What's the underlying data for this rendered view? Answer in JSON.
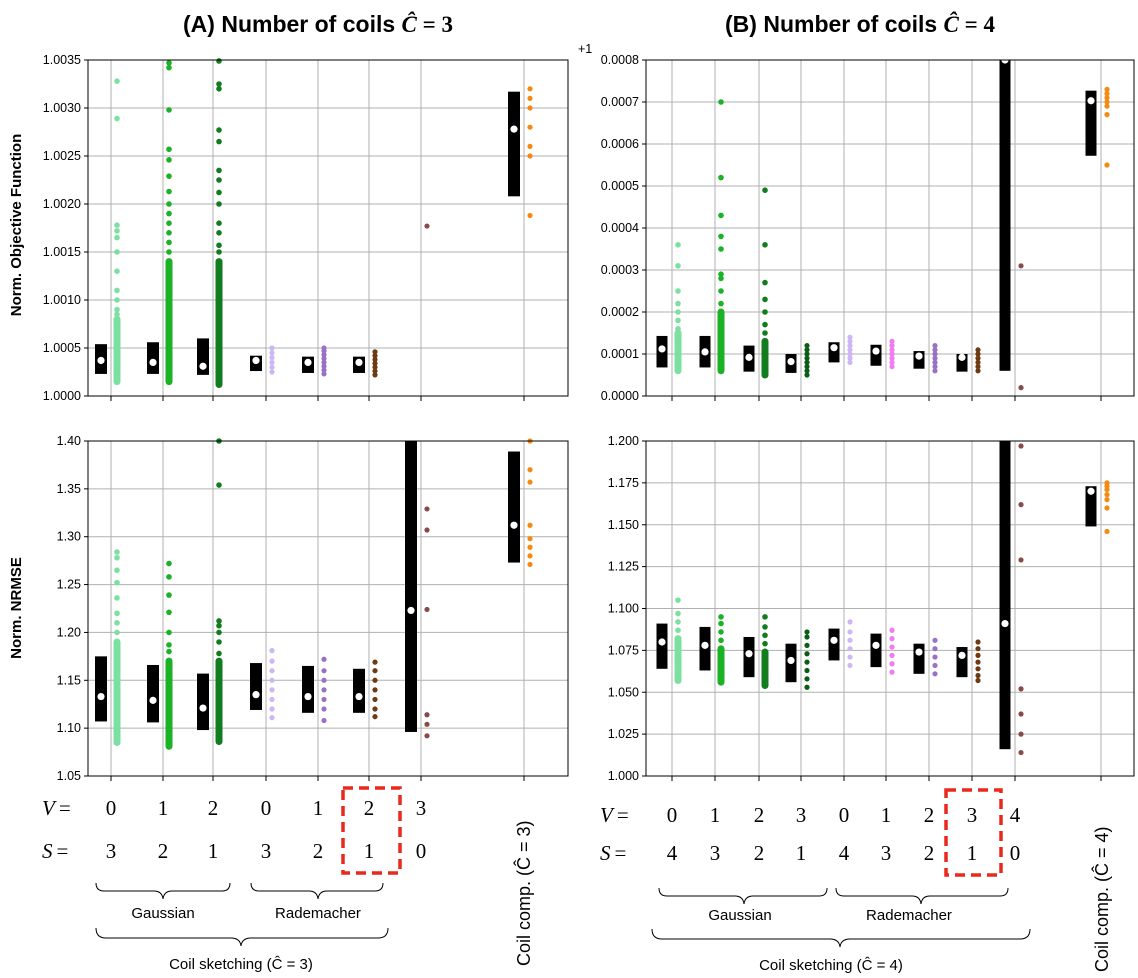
{
  "panels": [
    {
      "title_prefix": "(A) Number of coils ",
      "title_math": "Ĉ",
      "title_suffix": " = 3"
    },
    {
      "title_prefix": "(B) Number of coils ",
      "title_math": "Ĉ",
      "title_suffix": " = 4"
    }
  ],
  "row_labels": {
    "V": "V",
    "S": "S",
    "eq": "="
  },
  "x_rows": [
    {
      "V": [
        "0",
        "1",
        "2",
        "0",
        "1",
        "2",
        "3"
      ],
      "S": [
        "3",
        "2",
        "1",
        "3",
        "2",
        "1",
        "0"
      ]
    },
    {
      "V": [
        "0",
        "1",
        "2",
        "3",
        "0",
        "1",
        "2",
        "3",
        "4"
      ],
      "S": [
        "4",
        "3",
        "2",
        "1",
        "4",
        "3",
        "2",
        "1",
        "0"
      ]
    }
  ],
  "groups": {
    "gaussian": "Gaussian",
    "rademacher": "Rademacher",
    "sketch_A": "Coil sketching (Ĉ = 3)",
    "sketch_B": "Coil sketching (Ĉ = 4)",
    "comp_A": "Coil comp. (Ĉ = 3)",
    "comp_B": "Coil comp. (Ĉ = 4)"
  },
  "colors": {
    "g0": "#7be0a0",
    "g1": "#1bb226",
    "g2": "#127d1e",
    "g3": "#0b5d16",
    "r0": "#cdb6f5",
    "r1": "#f27af2",
    "r2": "#9a72c5",
    "r3": "#6e3a12",
    "zero": "#8b4a4a",
    "comp": "#f58a10",
    "box": "#000000",
    "highlight": "#e8291c"
  },
  "chart_data": [
    {
      "type": "box-strip",
      "panel": "A-top",
      "ylabel": "Norm. Objective Function",
      "ylim": [
        1.0,
        1.0035
      ],
      "offset_label": "",
      "yticks": [
        1.0,
        1.0005,
        1.001,
        1.0015,
        1.002,
        1.0025,
        1.003,
        1.0035
      ],
      "ytick_labels": [
        "1.0000",
        "1.0005",
        "1.0010",
        "1.0015",
        "1.0020",
        "1.0025",
        "1.0030",
        "1.0035"
      ],
      "categories": [
        "V=0,S=3 Gaussian",
        "V=1,S=2 Gaussian",
        "V=2,S=1 Gaussian",
        "V=0,S=3 Rademacher",
        "V=1,S=2 Rademacher",
        "V=2,S=1 Rademacher",
        "V=3,S=0",
        "Coil comp."
      ],
      "boxes": [
        {
          "q1": 1.00023,
          "q3": 1.00054,
          "median": 1.00037
        },
        {
          "q1": 1.00023,
          "q3": 1.00056,
          "median": 1.00035
        },
        {
          "q1": 1.00022,
          "q3": 1.0006,
          "median": 1.00031
        },
        {
          "q1": 1.00026,
          "q3": 1.00042,
          "median": 1.00037
        },
        {
          "q1": 1.00024,
          "q3": 1.00041,
          "median": 1.00035
        },
        {
          "q1": 1.00024,
          "q3": 1.00041,
          "median": 1.00035
        },
        null,
        {
          "q1": 1.00208,
          "q3": 1.00317,
          "median": 1.00278
        }
      ],
      "points": [
        [
          1.00015,
          1.0002,
          1.00025,
          1.0003,
          1.00035,
          1.0004,
          1.00045,
          1.0005,
          1.00055,
          1.0006,
          1.00065,
          1.0007,
          1.00075,
          1.0008,
          1.00085,
          1.0009,
          1.001,
          1.0011,
          1.0013,
          1.0015,
          1.00165,
          1.00172,
          1.00178,
          1.00289,
          1.00328
        ],
        [
          1.00015,
          1.0002,
          1.00025,
          1.0003,
          1.00035,
          1.0004,
          1.0005,
          1.0006,
          1.0007,
          1.0008,
          1.0009,
          1.001,
          1.0011,
          1.0012,
          1.0013,
          1.0014,
          1.0015,
          1.0016,
          1.0017,
          1.0018,
          1.0019,
          1.002,
          1.00213,
          1.00229,
          1.00246,
          1.00257,
          1.00298,
          1.00342,
          1.00347
        ],
        [
          1.00012,
          1.00018,
          1.00025,
          1.0003,
          1.00035,
          1.0004,
          1.0005,
          1.0006,
          1.0007,
          1.0008,
          1.0009,
          1.001,
          1.0011,
          1.0012,
          1.0013,
          1.0014,
          1.0015,
          1.00157,
          1.0017,
          1.0018,
          1.002,
          1.00212,
          1.00225,
          1.00235,
          1.00265,
          1.00277,
          1.0032,
          1.00325,
          1.00349
        ],
        [
          1.00025,
          1.0003,
          1.00035,
          1.0004,
          1.00045,
          1.0005
        ],
        [
          1.00023,
          1.00027,
          1.00031,
          1.00035,
          1.00039,
          1.00043,
          1.00047,
          1.0005
        ],
        [
          1.00022,
          1.00026,
          1.0003,
          1.00034,
          1.00038,
          1.00042,
          1.00046
        ],
        [
          1.00177
        ],
        [
          1.00188,
          1.0025,
          1.0026,
          1.0028,
          1.003,
          1.0031,
          1.0032
        ]
      ]
    },
    {
      "type": "box-strip",
      "panel": "B-top",
      "ylabel": "",
      "ylim": [
        0.0,
        0.0008
      ],
      "offset_label": "+1",
      "yticks": [
        0.0,
        0.0001,
        0.0002,
        0.0003,
        0.0004,
        0.0005,
        0.0006,
        0.0007,
        0.0008
      ],
      "ytick_labels": [
        "0.0000",
        "0.0001",
        "0.0002",
        "0.0003",
        "0.0004",
        "0.0005",
        "0.0006",
        "0.0007",
        "0.0008"
      ],
      "categories": [
        "V=0,S=4 Gaussian",
        "V=1,S=3 Gaussian",
        "V=2,S=2 Gaussian",
        "V=3,S=1 Gaussian",
        "V=0,S=4 Rademacher",
        "V=1,S=3 Rademacher",
        "V=2,S=2 Rademacher",
        "V=3,S=1 Rademacher",
        "V=4,S=0",
        "Coil comp."
      ],
      "boxes": [
        {
          "q1": 6.8e-05,
          "q3": 0.000143,
          "median": 0.000112
        },
        {
          "q1": 6.8e-05,
          "q3": 0.000143,
          "median": 0.000105
        },
        {
          "q1": 5.8e-05,
          "q3": 0.00012,
          "median": 9.2e-05
        },
        {
          "q1": 5.5e-05,
          "q3": 0.0001,
          "median": 8.2e-05
        },
        {
          "q1": 8e-05,
          "q3": 0.000128,
          "median": 0.000115
        },
        {
          "q1": 7.2e-05,
          "q3": 0.000122,
          "median": 0.000107
        },
        {
          "q1": 6.5e-05,
          "q3": 0.000107,
          "median": 9.5e-05
        },
        {
          "q1": 5.8e-05,
          "q3": 0.0001,
          "median": 9.2e-05
        },
        {
          "q1": 6e-05,
          "q3": 0.0008,
          "median": 0.0008
        },
        {
          "q1": 0.000572,
          "q3": 0.000727,
          "median": 0.000703
        }
      ],
      "points": [
        [
          6e-05,
          7e-05,
          8e-05,
          9e-05,
          0.0001,
          0.00011,
          0.00012,
          0.00013,
          0.00014,
          0.00015,
          0.00016,
          0.00018,
          0.0002,
          0.00022,
          0.00025,
          0.00031,
          0.00036
        ],
        [
          6e-05,
          7e-05,
          8e-05,
          9e-05,
          0.0001,
          0.00011,
          0.00012,
          0.00013,
          0.00014,
          0.00015,
          0.00017,
          0.0002,
          0.00022,
          0.00025,
          0.00028,
          0.00029,
          0.00035,
          0.00038,
          0.00043,
          0.00052,
          0.0007
        ],
        [
          5e-05,
          6e-05,
          7e-05,
          8e-05,
          9e-05,
          0.0001,
          0.00011,
          0.00012,
          0.00013,
          0.00015,
          0.00017,
          0.0002,
          0.00023,
          0.00027,
          0.00036,
          0.00049
        ],
        [
          5e-05,
          6e-05,
          7e-05,
          8e-05,
          9e-05,
          0.0001,
          0.00011,
          0.00012
        ],
        [
          8e-05,
          9e-05,
          0.0001,
          0.00011,
          0.00012,
          0.00013,
          0.00014
        ],
        [
          7e-05,
          8e-05,
          9e-05,
          0.0001,
          0.00011,
          0.00012,
          0.00013
        ],
        [
          6e-05,
          7e-05,
          8e-05,
          9e-05,
          0.0001,
          0.00011,
          0.00012
        ],
        [
          6e-05,
          7e-05,
          8e-05,
          9e-05,
          0.0001,
          0.00011
        ],
        [
          2e-05,
          0.00031
        ],
        [
          0.00055,
          0.00067,
          0.00069,
          0.0007,
          0.00071,
          0.00072,
          0.00073
        ]
      ]
    },
    {
      "type": "box-strip",
      "panel": "A-bottom",
      "ylabel": "Norm. NRMSE",
      "ylim": [
        1.05,
        1.4
      ],
      "offset_label": "",
      "yticks": [
        1.05,
        1.1,
        1.15,
        1.2,
        1.25,
        1.3,
        1.35,
        1.4
      ],
      "ytick_labels": [
        "1.05",
        "1.10",
        "1.15",
        "1.20",
        "1.25",
        "1.30",
        "1.35",
        "1.40"
      ],
      "categories": [
        "V=0,S=3 Gaussian",
        "V=1,S=2 Gaussian",
        "V=2,S=1 Gaussian",
        "V=0,S=3 Rademacher",
        "V=1,S=2 Rademacher",
        "V=2,S=1 Rademacher",
        "V=3,S=0",
        "Coil comp."
      ],
      "boxes": [
        {
          "q1": 1.107,
          "q3": 1.175,
          "median": 1.133
        },
        {
          "q1": 1.106,
          "q3": 1.166,
          "median": 1.129
        },
        {
          "q1": 1.098,
          "q3": 1.157,
          "median": 1.121
        },
        {
          "q1": 1.119,
          "q3": 1.168,
          "median": 1.135
        },
        {
          "q1": 1.116,
          "q3": 1.165,
          "median": 1.133
        },
        {
          "q1": 1.116,
          "q3": 1.162,
          "median": 1.133
        },
        {
          "q1": 1.096,
          "q3": 1.4,
          "median": 1.223
        },
        {
          "q1": 1.273,
          "q3": 1.389,
          "median": 1.312
        }
      ],
      "points": [
        [
          1.085,
          1.09,
          1.1,
          1.11,
          1.12,
          1.13,
          1.14,
          1.15,
          1.16,
          1.17,
          1.18,
          1.19,
          1.2,
          1.21,
          1.22,
          1.236,
          1.252,
          1.265,
          1.278,
          1.284
        ],
        [
          1.081,
          1.09,
          1.1,
          1.11,
          1.12,
          1.13,
          1.14,
          1.15,
          1.16,
          1.17,
          1.18,
          1.187,
          1.2,
          1.221,
          1.239,
          1.258,
          1.272
        ],
        [
          1.086,
          1.09,
          1.1,
          1.11,
          1.12,
          1.13,
          1.14,
          1.15,
          1.16,
          1.17,
          1.178,
          1.19,
          1.2,
          1.207,
          1.212,
          1.354,
          1.4
        ],
        [
          1.111,
          1.12,
          1.13,
          1.14,
          1.15,
          1.16,
          1.17,
          1.181
        ],
        [
          1.108,
          1.12,
          1.13,
          1.14,
          1.15,
          1.16,
          1.172
        ],
        [
          1.112,
          1.12,
          1.13,
          1.14,
          1.15,
          1.16,
          1.169
        ],
        [
          1.092,
          1.104,
          1.114,
          1.224,
          1.307,
          1.329
        ],
        [
          1.271,
          1.28,
          1.289,
          1.298,
          1.312,
          1.357,
          1.37,
          1.4
        ]
      ]
    },
    {
      "type": "box-strip",
      "panel": "B-bottom",
      "ylabel": "",
      "ylim": [
        1.0,
        1.2
      ],
      "offset_label": "",
      "yticks": [
        1.0,
        1.025,
        1.05,
        1.075,
        1.1,
        1.125,
        1.15,
        1.175,
        1.2
      ],
      "ytick_labels": [
        "1.000",
        "1.025",
        "1.050",
        "1.075",
        "1.100",
        "1.125",
        "1.150",
        "1.175",
        "1.200"
      ],
      "categories": [
        "V=0,S=4 Gaussian",
        "V=1,S=3 Gaussian",
        "V=2,S=2 Gaussian",
        "V=3,S=1 Gaussian",
        "V=0,S=4 Rademacher",
        "V=1,S=3 Rademacher",
        "V=2,S=2 Rademacher",
        "V=3,S=1 Rademacher",
        "V=4,S=0",
        "Coil comp."
      ],
      "boxes": [
        {
          "q1": 1.064,
          "q3": 1.091,
          "median": 1.08
        },
        {
          "q1": 1.063,
          "q3": 1.089,
          "median": 1.078
        },
        {
          "q1": 1.059,
          "q3": 1.083,
          "median": 1.073
        },
        {
          "q1": 1.056,
          "q3": 1.079,
          "median": 1.069
        },
        {
          "q1": 1.069,
          "q3": 1.088,
          "median": 1.081
        },
        {
          "q1": 1.065,
          "q3": 1.085,
          "median": 1.078
        },
        {
          "q1": 1.061,
          "q3": 1.079,
          "median": 1.074
        },
        {
          "q1": 1.059,
          "q3": 1.077,
          "median": 1.072
        },
        {
          "q1": 1.016,
          "q3": 1.2,
          "median": 1.091
        },
        {
          "q1": 1.149,
          "q3": 1.173,
          "median": 1.17
        }
      ],
      "points": [
        [
          1.057,
          1.062,
          1.067,
          1.072,
          1.077,
          1.082,
          1.087,
          1.092,
          1.097,
          1.105
        ],
        [
          1.056,
          1.061,
          1.066,
          1.071,
          1.076,
          1.081,
          1.086,
          1.091,
          1.095
        ],
        [
          1.054,
          1.059,
          1.064,
          1.069,
          1.074,
          1.079,
          1.084,
          1.089,
          1.095
        ],
        [
          1.053,
          1.058,
          1.063,
          1.068,
          1.073,
          1.078,
          1.083,
          1.086
        ],
        [
          1.066,
          1.071,
          1.076,
          1.081,
          1.086,
          1.092
        ],
        [
          1.062,
          1.067,
          1.072,
          1.077,
          1.082,
          1.087
        ],
        [
          1.061,
          1.066,
          1.071,
          1.076,
          1.081
        ],
        [
          1.057,
          1.06,
          1.064,
          1.068,
          1.072,
          1.076,
          1.08
        ],
        [
          1.014,
          1.025,
          1.037,
          1.052,
          1.129,
          1.162,
          1.197
        ],
        [
          1.146,
          1.16,
          1.165,
          1.168,
          1.171,
          1.173,
          1.175
        ]
      ]
    }
  ]
}
